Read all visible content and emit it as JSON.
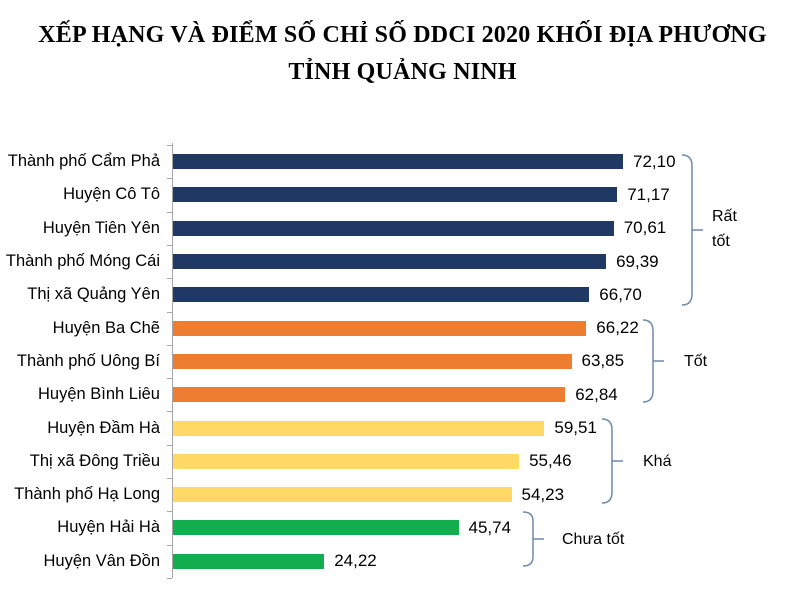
{
  "title": {
    "line1": "XẾP HẠNG VÀ ĐIỂM SỐ CHỈ SỐ DDCI 2020 KHỐI ĐỊA PHƯƠNG",
    "line2": "TỈNH QUẢNG NINH"
  },
  "chart_data": {
    "type": "bar",
    "orientation": "horizontal",
    "title": "XẾP HẠNG VÀ ĐIỂM SỐ CHỈ SỐ DDCI 2020 KHỐI ĐỊA PHƯƠNG TỈNH QUẢNG NINH",
    "categories": [
      "Thành phố Cẩm Phả",
      "Huyện Cô Tô",
      "Huyện Tiên Yên",
      "Thành phố Móng Cái",
      "Thị xã Quảng Yên",
      "Huyện Ba Chẽ",
      "Thành phố Uông Bí",
      "Huyện Bình Liêu",
      "Huyện Đầm Hà",
      "Thị xã Đông Triều",
      "Thành phố Hạ Long",
      "Huyện Hải Hà",
      "Huyện Vân Đồn"
    ],
    "values": [
      72.1,
      71.17,
      70.61,
      69.39,
      66.7,
      66.22,
      63.85,
      62.84,
      59.51,
      55.46,
      54.23,
      45.74,
      24.22
    ],
    "value_labels": [
      "72,10",
      "71,17",
      "70,61",
      "69,39",
      "66,70",
      "66,22",
      "63,85",
      "62,84",
      "59,51",
      "55,46",
      "54,23",
      "45,74",
      "24,22"
    ],
    "groups": [
      {
        "label": "Rất tốt",
        "color": "#1F3864",
        "from": 0,
        "to": 4
      },
      {
        "label": "Tốt",
        "color": "#ED7D31",
        "from": 5,
        "to": 7
      },
      {
        "label": "Khá",
        "color": "#FFD966",
        "from": 8,
        "to": 10
      },
      {
        "label": "Chưa tốt",
        "color": "#12AE4D",
        "from": 11,
        "to": 12
      }
    ],
    "grid": false,
    "legend_position": "right-brackets",
    "axis_color": "#A6A6A6",
    "bracket_color": "#6D8AA8",
    "value_decimal_separator": ","
  }
}
